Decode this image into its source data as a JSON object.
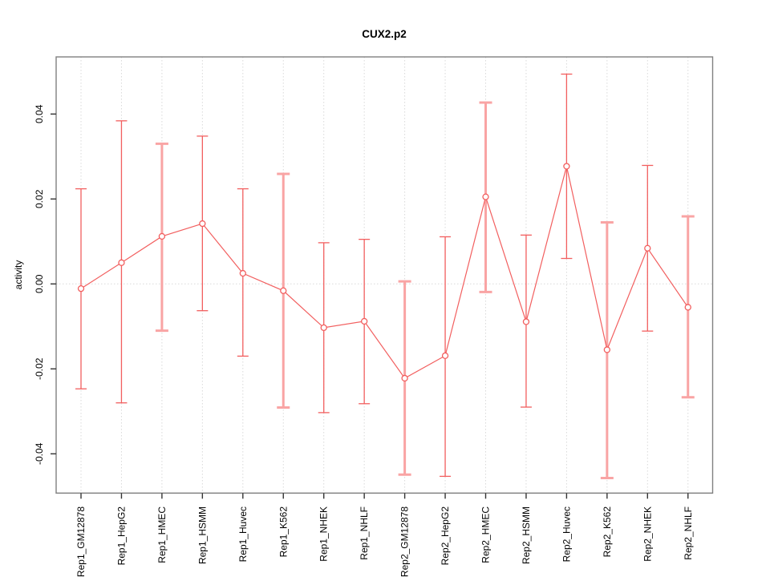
{
  "page": {
    "title": "CUX2.p2"
  },
  "chart_data": {
    "type": "line",
    "title": "CUX2.p2",
    "xlabel": "",
    "ylabel": "activity",
    "legend": "none",
    "grid": {
      "vertical_gridlines": "dotted, one per category",
      "zero_line": "dotted horizontal at y=0"
    },
    "categories": [
      "Rep1_GM12878",
      "Rep1_HepG2",
      "Rep1_HMEC",
      "Rep1_HSMM",
      "Rep1_Huvec",
      "Rep1_K562",
      "Rep1_NHEK",
      "Rep1_NHLF",
      "Rep2_GM12878",
      "Rep2_HepG2",
      "Rep2_HMEC",
      "Rep2_HSMM",
      "Rep2_Huvec",
      "Rep2_K562",
      "Rep2_NHEK",
      "Rep2_NHLF"
    ],
    "series": [
      {
        "name": "activity",
        "values": [
          -0.0011,
          0.005,
          0.0112,
          0.0142,
          0.0025,
          -0.0016,
          -0.0103,
          -0.0088,
          -0.0222,
          -0.0169,
          0.0205,
          -0.0089,
          0.0277,
          -0.0155,
          0.0084,
          -0.0055
        ]
      }
    ],
    "error_bars": {
      "upper": [
        0.0224,
        0.0384,
        0.033,
        0.0348,
        0.0224,
        0.0259,
        0.0097,
        0.0105,
        0.0006,
        0.0111,
        0.0427,
        0.0115,
        0.0494,
        0.0145,
        0.0279,
        0.0159
      ],
      "lower": [
        -0.0247,
        -0.028,
        -0.011,
        -0.0063,
        -0.017,
        -0.0291,
        -0.0303,
        -0.0282,
        -0.0449,
        -0.0453,
        -0.0019,
        -0.029,
        0.006,
        -0.0457,
        -0.0111,
        -0.0267
      ]
    },
    "thick_bar_indices": [
      2,
      5,
      8,
      10,
      13,
      15
    ],
    "yticks": [
      -0.04,
      -0.02,
      0.0,
      0.02,
      0.04
    ],
    "ytick_labels": [
      "-0.04",
      "-0.02",
      "0.00",
      "0.02",
      "0.04"
    ],
    "ylim": [
      -0.0493,
      0.0535
    ],
    "colors": {
      "series_line": "#f25f5f",
      "marker_stroke": "#f25f5f",
      "marker_fill": "#ffffff",
      "error_bar_thin": "#f25f5f",
      "error_bar_thick": "#f9a4a4",
      "frame": "#808080",
      "tick": "#333333",
      "gridline": "#d9d9d9",
      "text": "#000000"
    }
  }
}
